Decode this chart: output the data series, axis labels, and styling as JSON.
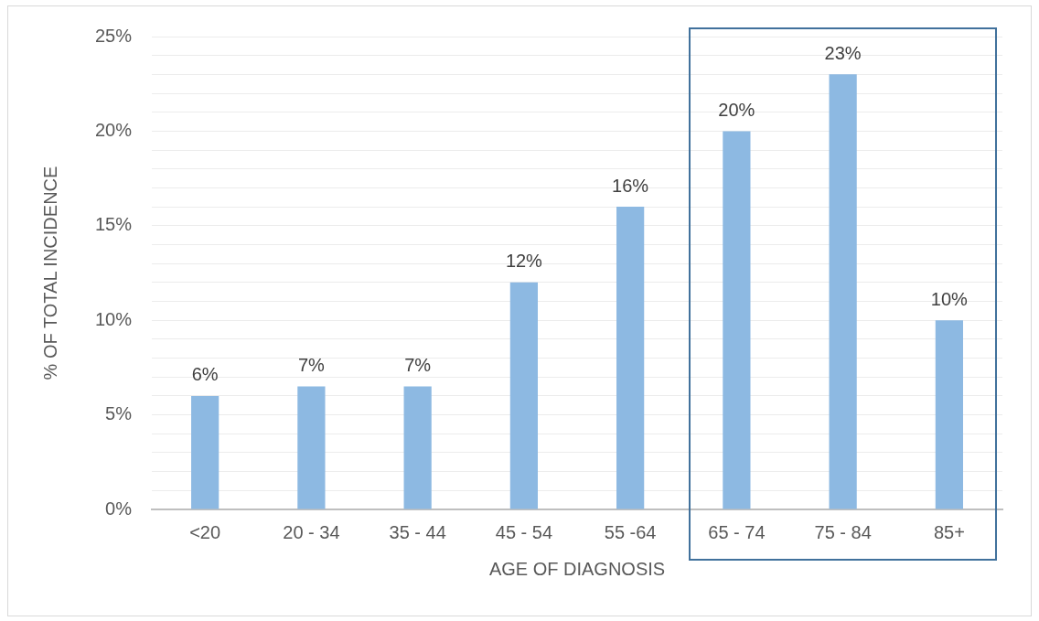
{
  "chart_data": {
    "type": "bar",
    "xlabel": "AGE OF DIAGNOSIS",
    "ylabel": "% OF TOTAL INCIDENCE",
    "categories": [
      "<20",
      "20 - 34",
      "35 - 44",
      "45 - 54",
      "55 -64",
      "65 - 74",
      "75 - 84",
      "85+"
    ],
    "values": [
      6,
      6.5,
      6.5,
      12,
      16,
      20,
      23,
      10
    ],
    "value_labels": [
      "6%",
      "7%",
      "7%",
      "12%",
      "16%",
      "20%",
      "23%",
      "10%"
    ],
    "color": "#8db9e2",
    "ylim": [
      0,
      25
    ],
    "yticks": [
      {
        "value": 0,
        "label": "0%"
      },
      {
        "value": 1,
        "label": null
      },
      {
        "value": 2,
        "label": null
      },
      {
        "value": 3,
        "label": null
      },
      {
        "value": 4,
        "label": null
      },
      {
        "value": 5,
        "label": "5%"
      },
      {
        "value": 6,
        "label": null
      },
      {
        "value": 7,
        "label": null
      },
      {
        "value": 8,
        "label": null
      },
      {
        "value": 9,
        "label": null
      },
      {
        "value": 10,
        "label": "10%"
      },
      {
        "value": 11,
        "label": null
      },
      {
        "value": 12,
        "label": null
      },
      {
        "value": 13,
        "label": null
      },
      {
        "value": 14,
        "label": null
      },
      {
        "value": 15,
        "label": "15%"
      },
      {
        "value": 16,
        "label": null
      },
      {
        "value": 17,
        "label": null
      },
      {
        "value": 18,
        "label": null
      },
      {
        "value": 19,
        "label": null
      },
      {
        "value": 20,
        "label": "20%"
      },
      {
        "value": 21,
        "label": null
      },
      {
        "value": 22,
        "label": null
      },
      {
        "value": 23,
        "label": null
      },
      {
        "value": 24,
        "label": null
      },
      {
        "value": 25,
        "label": "25%"
      }
    ],
    "grid": "y"
  }
}
